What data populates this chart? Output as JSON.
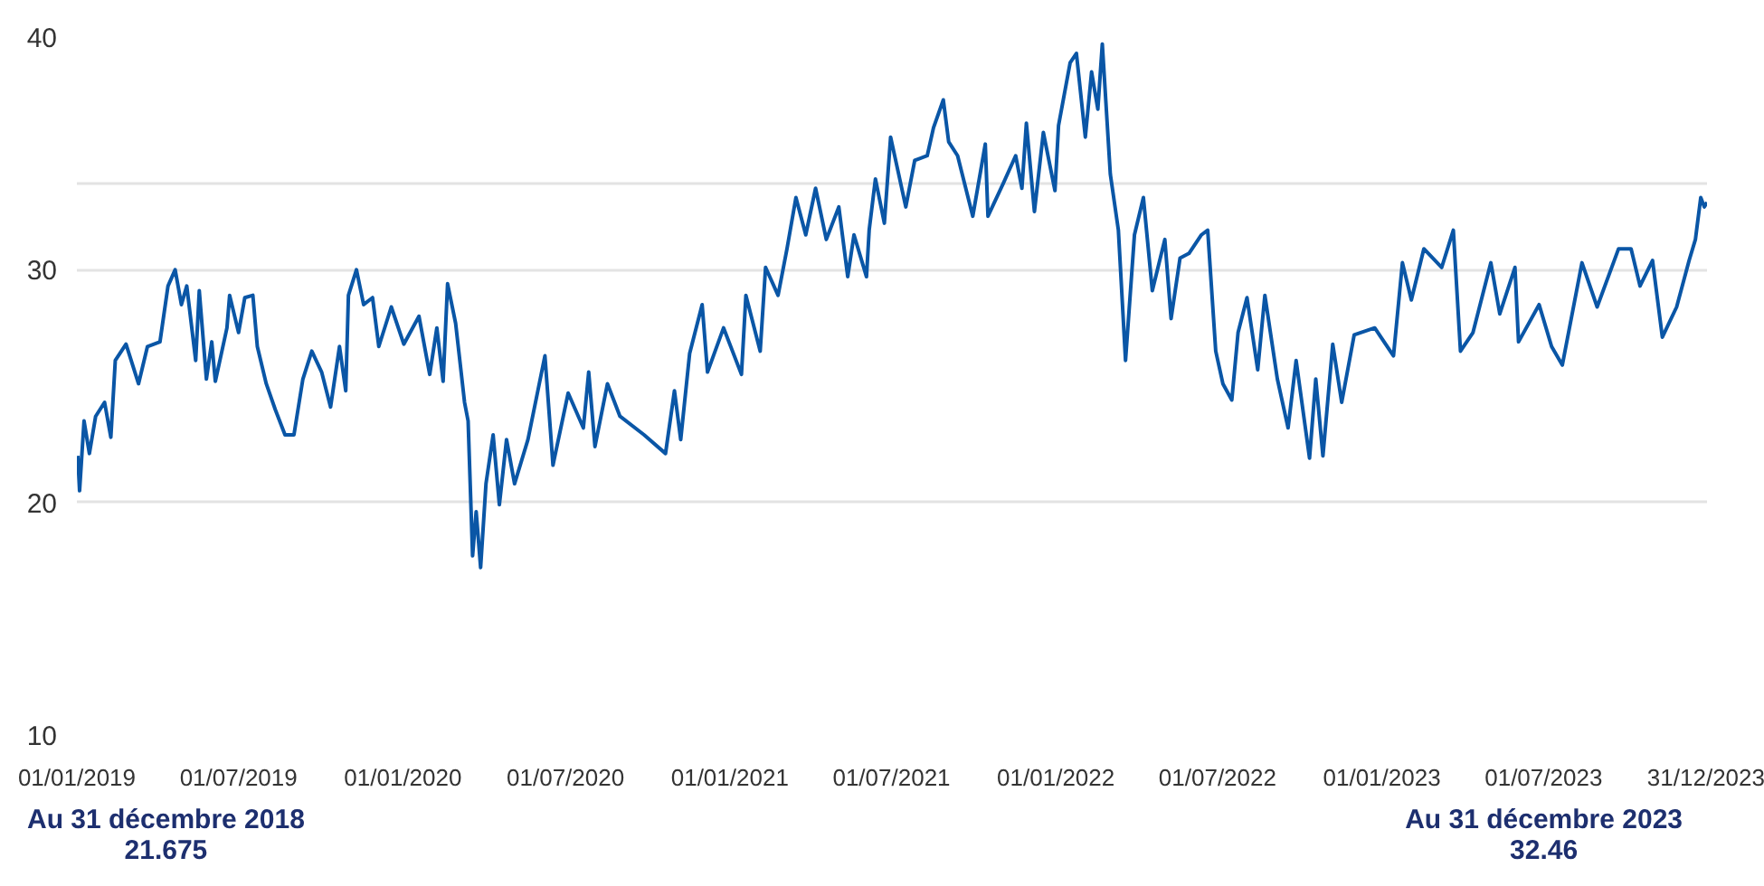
{
  "chart_data": {
    "type": "line",
    "x": [
      "2019-01-02",
      "2019-01-04",
      "2019-01-09",
      "2019-01-15",
      "2019-01-22",
      "2019-02-01",
      "2019-02-08",
      "2019-02-13",
      "2019-02-25",
      "2019-03-11",
      "2019-03-21",
      "2019-04-04",
      "2019-04-13",
      "2019-04-21",
      "2019-04-28",
      "2019-05-04",
      "2019-05-14",
      "2019-05-18",
      "2019-05-26",
      "2019-06-01",
      "2019-06-05",
      "2019-06-18",
      "2019-06-21",
      "2019-07-01",
      "2019-07-08",
      "2019-07-17",
      "2019-07-22",
      "2019-08-01",
      "2019-08-11",
      "2019-08-22",
      "2019-09-01",
      "2019-09-11",
      "2019-09-21",
      "2019-10-02",
      "2019-10-12",
      "2019-10-22",
      "2019-10-29",
      "2019-11-01",
      "2019-11-10",
      "2019-11-18",
      "2019-11-28",
      "2019-12-05",
      "2019-12-19",
      "2020-01-02",
      "2020-01-19",
      "2020-01-31",
      "2020-02-08",
      "2020-02-15",
      "2020-02-20",
      "2020-02-29",
      "2020-03-10",
      "2020-03-14",
      "2020-03-19",
      "2020-03-23",
      "2020-03-28",
      "2020-04-03",
      "2020-04-11",
      "2020-04-18",
      "2020-04-26",
      "2020-05-05",
      "2020-05-20",
      "2020-06-08",
      "2020-06-17",
      "2020-07-04",
      "2020-07-21",
      "2020-07-27",
      "2020-08-03",
      "2020-08-17",
      "2020-08-31",
      "2020-09-27",
      "2020-10-21",
      "2020-10-31",
      "2020-11-07",
      "2020-11-17",
      "2020-12-01",
      "2020-12-07",
      "2020-12-25",
      "2021-01-14",
      "2021-01-19",
      "2021-02-04",
      "2021-02-10",
      "2021-02-24",
      "2021-03-06",
      "2021-03-16",
      "2021-03-27",
      "2021-04-07",
      "2021-04-19",
      "2021-05-03",
      "2021-05-13",
      "2021-05-20",
      "2021-06-03",
      "2021-06-06",
      "2021-06-13",
      "2021-06-23",
      "2021-06-30",
      "2021-07-17",
      "2021-07-27",
      "2021-08-10",
      "2021-08-17",
      "2021-08-28",
      "2021-09-03",
      "2021-09-13",
      "2021-09-30",
      "2021-10-14",
      "2021-10-17",
      "2021-11-03",
      "2021-11-17",
      "2021-11-24",
      "2021-11-29",
      "2021-12-08",
      "2021-12-18",
      "2021-12-31",
      "2022-01-04",
      "2022-01-17",
      "2022-01-24",
      "2022-02-03",
      "2022-02-10",
      "2022-02-17",
      "2022-02-22",
      "2022-03-03",
      "2022-03-12",
      "2022-03-20",
      "2022-03-30",
      "2022-04-09",
      "2022-04-19",
      "2022-05-03",
      "2022-05-10",
      "2022-05-20",
      "2022-05-30",
      "2022-06-13",
      "2022-06-20",
      "2022-06-29",
      "2022-07-07",
      "2022-07-17",
      "2022-07-24",
      "2022-08-03",
      "2022-08-15",
      "2022-08-23",
      "2022-09-06",
      "2022-09-18",
      "2022-09-27",
      "2022-10-12",
      "2022-10-19",
      "2022-10-27",
      "2022-11-07",
      "2022-11-17",
      "2022-12-01",
      "2022-12-24",
      "2023-01-14",
      "2023-01-24",
      "2023-02-03",
      "2023-02-17",
      "2023-03-09",
      "2023-03-22",
      "2023-03-30",
      "2023-04-13",
      "2023-05-03",
      "2023-05-13",
      "2023-05-30",
      "2023-06-03",
      "2023-06-26",
      "2023-07-10",
      "2023-07-22",
      "2023-08-03",
      "2023-08-13",
      "2023-08-30",
      "2023-09-23",
      "2023-10-07",
      "2023-10-17",
      "2023-10-31",
      "2023-11-11",
      "2023-11-27",
      "2023-12-11",
      "2023-12-18",
      "2023-12-24",
      "2023-12-28",
      "2023-12-31"
    ],
    "series": [
      {
        "color": "#0a56a6",
        "values": [
          22.0,
          20.5,
          23.5,
          22.1,
          23.7,
          24.3,
          22.8,
          26.1,
          26.8,
          25.1,
          26.7,
          26.9,
          29.3,
          30.0,
          28.5,
          29.3,
          26.1,
          29.1,
          25.3,
          26.9,
          25.2,
          27.5,
          28.9,
          27.3,
          28.8,
          28.9,
          26.7,
          25.1,
          24.0,
          22.9,
          22.9,
          25.3,
          26.5,
          25.6,
          24.1,
          26.7,
          24.8,
          28.9,
          30.0,
          28.5,
          28.8,
          26.7,
          28.4,
          26.8,
          28.0,
          25.5,
          27.5,
          25.2,
          29.4,
          27.7,
          24.3,
          23.5,
          17.7,
          19.6,
          17.2,
          20.8,
          22.9,
          19.9,
          22.7,
          20.8,
          22.7,
          26.3,
          21.6,
          24.7,
          23.2,
          25.6,
          22.4,
          25.1,
          23.7,
          22.9,
          22.1,
          24.8,
          22.7,
          26.4,
          28.5,
          25.6,
          27.5,
          25.5,
          28.9,
          26.5,
          30.1,
          28.9,
          30.9,
          33.1,
          31.5,
          33.5,
          31.3,
          32.7,
          29.7,
          31.5,
          29.7,
          31.7,
          33.9,
          32.0,
          35.7,
          32.7,
          34.7,
          34.9,
          36.1,
          37.3,
          35.5,
          34.9,
          32.3,
          35.4,
          32.3,
          33.7,
          34.9,
          33.5,
          36.3,
          32.5,
          35.9,
          33.4,
          36.2,
          38.9,
          39.3,
          35.7,
          38.5,
          36.9,
          39.7,
          34.1,
          31.7,
          26.1,
          31.5,
          33.1,
          29.1,
          31.3,
          27.9,
          30.5,
          30.7,
          31.5,
          31.7,
          26.5,
          25.1,
          24.4,
          27.3,
          28.8,
          25.7,
          28.9,
          25.3,
          23.2,
          26.1,
          21.9,
          25.3,
          22.0,
          26.8,
          24.3,
          27.2,
          27.5,
          26.3,
          30.3,
          28.7,
          30.9,
          30.1,
          31.7,
          26.5,
          27.3,
          30.3,
          28.1,
          30.1,
          26.9,
          28.5,
          26.7,
          25.9,
          28.3,
          30.3,
          28.4,
          30.9,
          30.9,
          29.3,
          30.4,
          27.1,
          28.4,
          30.4,
          31.3,
          33.1,
          32.7,
          32.9
        ]
      }
    ],
    "xlim": [
      "2019-01-01",
      "2023-12-31"
    ],
    "xticks": [
      {
        "value": "2019-01-01",
        "label": "01/01/2019"
      },
      {
        "value": "2019-07-01",
        "label": "01/07/2019"
      },
      {
        "value": "2020-01-01",
        "label": "01/01/2020"
      },
      {
        "value": "2020-07-01",
        "label": "01/07/2020"
      },
      {
        "value": "2021-01-01",
        "label": "01/01/2021"
      },
      {
        "value": "2021-07-01",
        "label": "01/07/2021"
      },
      {
        "value": "2022-01-01",
        "label": "01/01/2022"
      },
      {
        "value": "2022-07-01",
        "label": "01/07/2022"
      },
      {
        "value": "2023-01-01",
        "label": "01/01/2023"
      },
      {
        "value": "2023-07-01",
        "label": "01/07/2023"
      },
      {
        "value": "2023-12-31",
        "label": "31/12/2023"
      }
    ],
    "ylim": [
      10,
      40
    ],
    "yticks": [
      10,
      20,
      30,
      {
        "value": 33.7,
        "label": null
      },
      40
    ],
    "grid": "y",
    "annotations": [
      "Au 31 décembre 2018",
      "21.675",
      "Au 31 décembre 2023",
      "32.46"
    ]
  }
}
